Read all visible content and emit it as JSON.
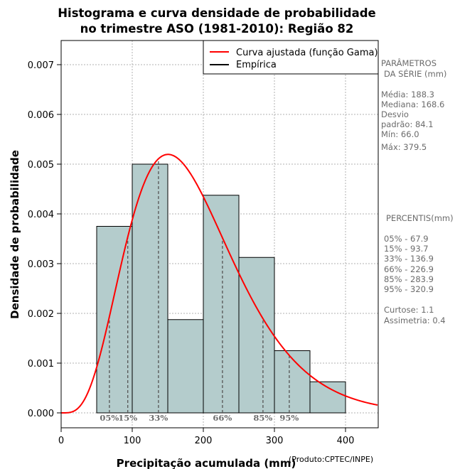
{
  "chart_data": {
    "type": "histogram",
    "title_lines": [
      "Histograma e curva densidade de probabilidade",
      "no trimestre ASO (1981-2010): Região 82"
    ],
    "xlabel": "Precipitação acumulada (mm)",
    "ylabel": "Densidade de probabilidade",
    "credit": "(Produto:CPTEC/INPE)",
    "xlim": [
      0,
      445
    ],
    "ylim": [
      -0.00023,
      0.00745
    ],
    "x_ticks": [
      0,
      100,
      200,
      300,
      400
    ],
    "x_tick_labels": [
      "0",
      "100",
      "200",
      "300",
      "400"
    ],
    "y_ticks": [
      0,
      0.001,
      0.002,
      0.003,
      0.004,
      0.005,
      0.006,
      0.007
    ],
    "y_tick_labels": [
      "0.000",
      "0.001",
      "0.002",
      "0.003",
      "0.004",
      "0.005",
      "0.006",
      "0.007"
    ],
    "grid": true,
    "bins": [
      {
        "x0": 50,
        "x1": 100,
        "density": 0.00375
      },
      {
        "x0": 100,
        "x1": 150,
        "density": 0.005
      },
      {
        "x0": 150,
        "x1": 200,
        "density": 0.001875
      },
      {
        "x0": 200,
        "x1": 250,
        "density": 0.004375
      },
      {
        "x0": 250,
        "x1": 300,
        "density": 0.003125
      },
      {
        "x0": 300,
        "x1": 350,
        "density": 0.00125
      },
      {
        "x0": 350,
        "x1": 400,
        "density": 0.000625
      }
    ],
    "gamma_fit": {
      "shape": 5.0,
      "scale": 37.6,
      "loc": 0
    },
    "percentile_lines": [
      {
        "label": "05%",
        "value": 67.9
      },
      {
        "label": "15%",
        "value": 93.7
      },
      {
        "label": "33%",
        "value": 136.9
      },
      {
        "label": "66%",
        "value": 226.9
      },
      {
        "label": "85%",
        "value": 283.9
      },
      {
        "label": "95%",
        "value": 320.9
      }
    ],
    "legend": {
      "position": "top-right",
      "entries": [
        {
          "label": "Curva ajustada (função Gama)",
          "color": "#ff0000"
        },
        {
          "label": "Empírica",
          "color": "#000000"
        }
      ]
    },
    "colors": {
      "bar_fill": "#b4cccc",
      "bar_stroke": "#000000",
      "curve": "#ff0000",
      "grid": "#b0b0b0",
      "percentile_line": "#555555",
      "side_text": "#6b6b6b"
    }
  },
  "side_panel": {
    "params_title_1": "PARÂMETROS",
    "params_title_2": "DA SÉRIE (mm)",
    "media": "Média:  188.3",
    "mediana": "Mediana:  168.6",
    "desvio_1": "Desvio",
    "desvio_2": "padrão:  84.1",
    "min": "Mín:  66.0",
    "max": "Máx:  379.5",
    "percentis_title": "PERCENTIS(mm)",
    "p05": "05% -  67.9",
    "p15": "15% -  93.7",
    "p33": "33% -  136.9",
    "p66": "66% -  226.9",
    "p85": "85% -  283.9",
    "p95": "95% -  320.9",
    "curtose": "Curtose:  1.1",
    "assimetria": "Assimetria:  0.4"
  }
}
